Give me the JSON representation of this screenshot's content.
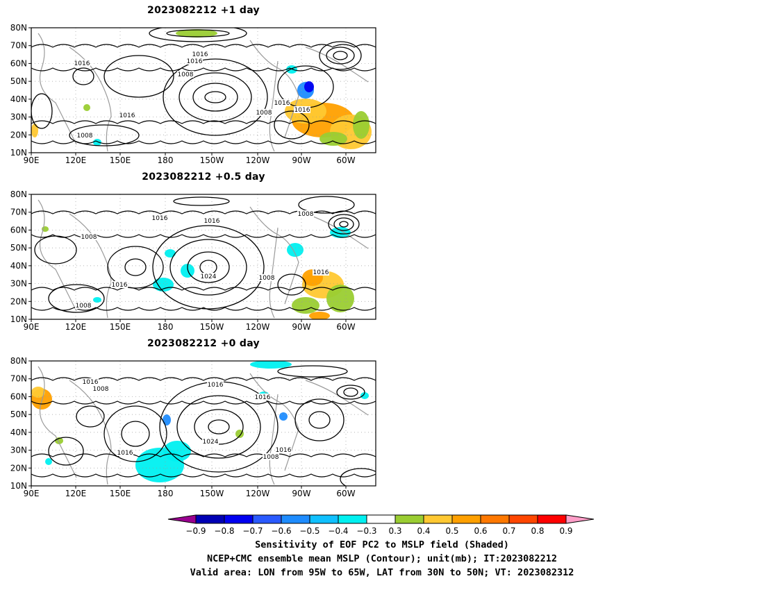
{
  "panels": [
    {
      "title": "2023082212 +1 day",
      "contour_labels": [
        "1016",
        "1016",
        "1016",
        "1008",
        "1016",
        "1008",
        "1016",
        "1016",
        "1008"
      ]
    },
    {
      "title": "2023082212 +0.5 day",
      "contour_labels": [
        "1016",
        "1016",
        "1008",
        "1008",
        "1024",
        "1016",
        "1008",
        "1016",
        "1008"
      ]
    },
    {
      "title": "2023082212 +0 day",
      "contour_labels": [
        "1016",
        "1008",
        "1016",
        "1016",
        "1024",
        "1016",
        "1016",
        "1008"
      ]
    }
  ],
  "lat_labels": [
    "80N",
    "70N",
    "60N",
    "50N",
    "40N",
    "30N",
    "20N",
    "10N"
  ],
  "lon_labels": [
    "90E",
    "120E",
    "150E",
    "180",
    "150W",
    "120W",
    "90W",
    "60W"
  ],
  "colorbar": {
    "labels": [
      "−0.9",
      "−0.8",
      "−0.7",
      "−0.6",
      "−0.5",
      "−0.4",
      "−0.3",
      "0.3",
      "0.4",
      "0.5",
      "0.6",
      "0.7",
      "0.8",
      "0.9"
    ],
    "colors": [
      "#9a0090",
      "#0000b4",
      "#0000f0",
      "#2a5aff",
      "#1e8cff",
      "#10c0ff",
      "#00f0f0",
      "#ffffff",
      "#9acd32",
      "#ffc832",
      "#ffa000",
      "#ff7800",
      "#ff4600",
      "#ff0000",
      "#ff9ec8"
    ]
  },
  "caption": {
    "line1": "Sensitivity of EOF PC2 to MSLP field (Shaded)",
    "line2": "NCEP+CMC ensemble mean MSLP (Contour); unit(mb); IT:2023082212",
    "line3": "Valid area: LON from 95W to 65W, LAT from 30N to 50N; VT: 2023082312"
  }
}
